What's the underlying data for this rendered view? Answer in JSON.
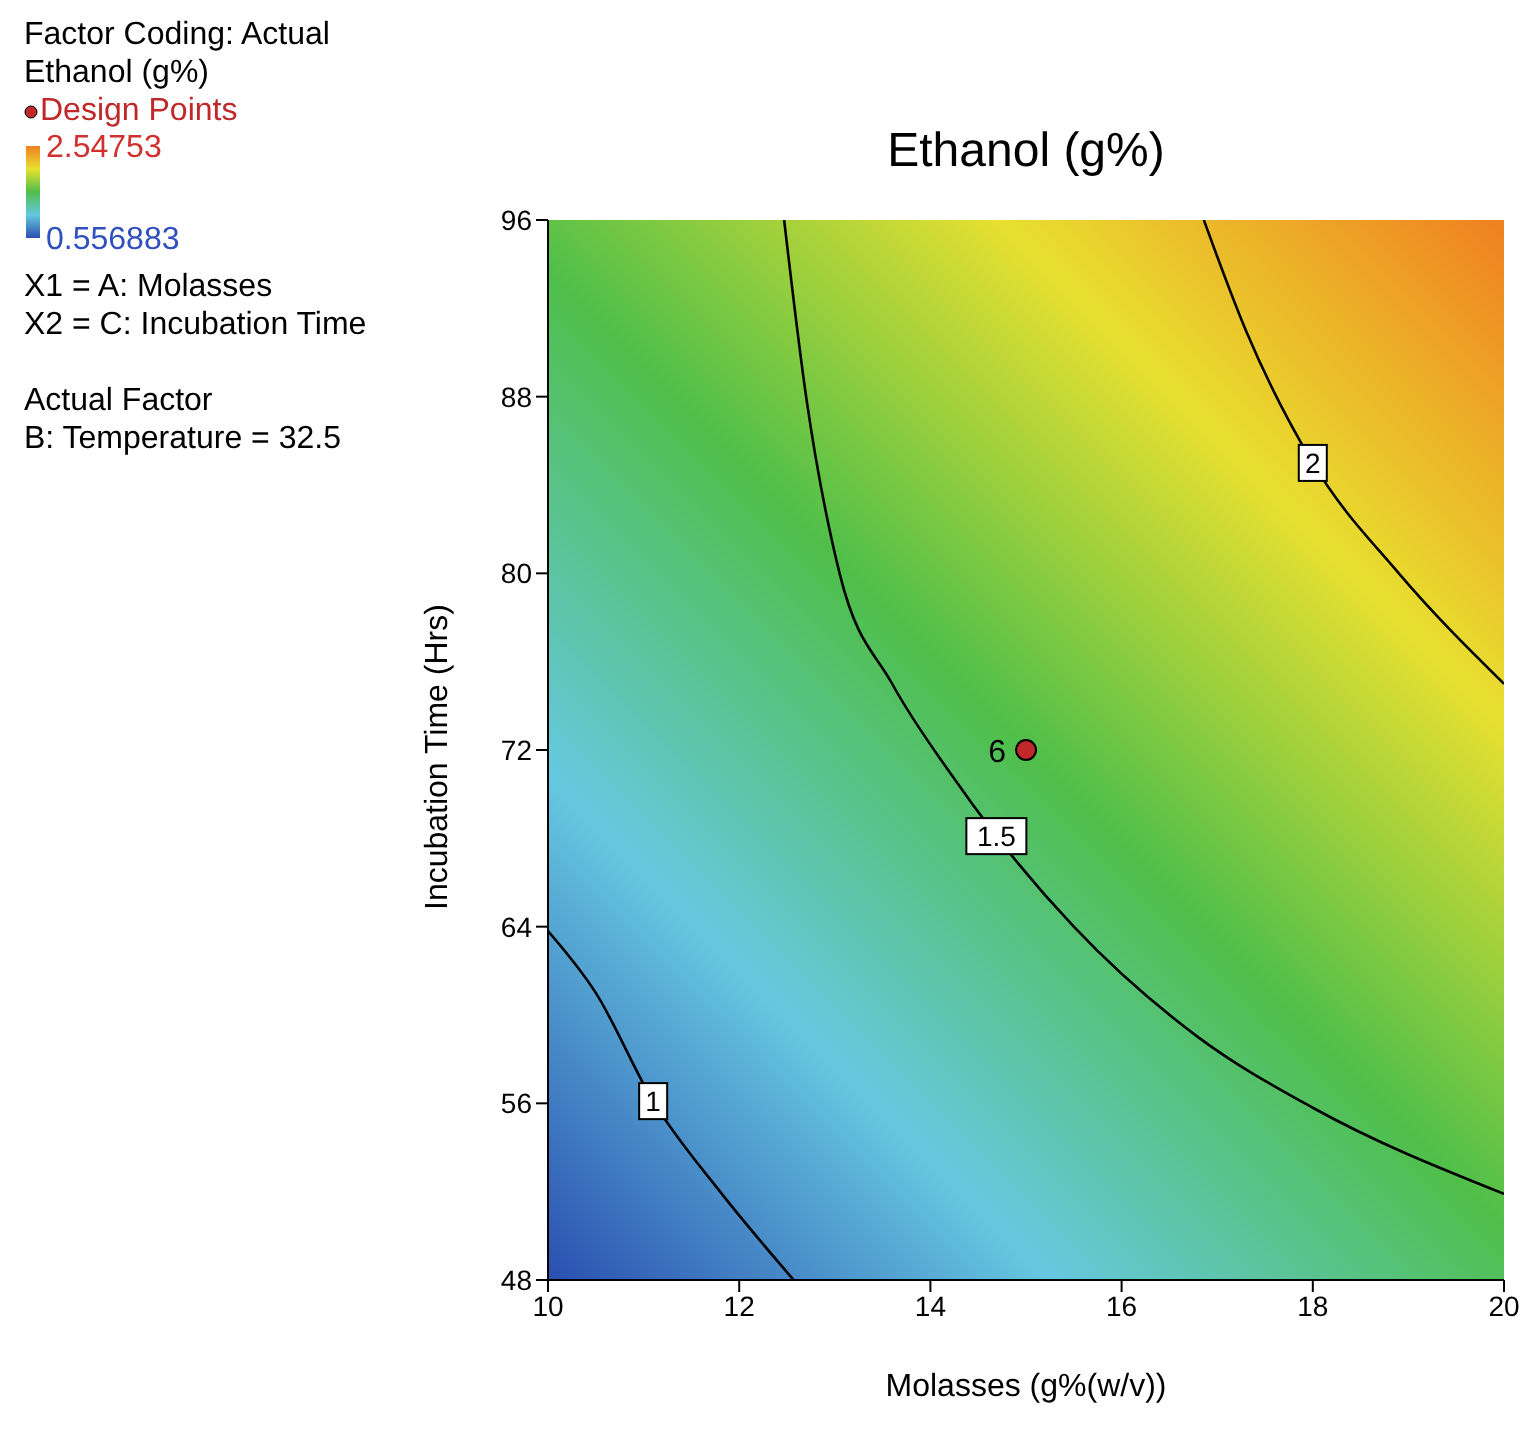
{
  "chart_data": {
    "type": "line",
    "title": "Ethanol (g%)",
    "xlabel": "Molasses (g%(w/v))",
    "ylabel": "Incubation Time (Hrs)",
    "xlim": [
      10,
      20
    ],
    "xticks": [
      10,
      12,
      14,
      16,
      18,
      20
    ],
    "ylim": [
      48,
      96
    ],
    "yticks": [
      48,
      56,
      64,
      72,
      80,
      88,
      96
    ],
    "clim": [
      0.556883,
      2.54753
    ],
    "cticks": [
      2.54753,
      0.556883
    ],
    "legend": "left",
    "grid": false,
    "marker": "none",
    "line_style": "solid",
    "annotations": [
      "Factor Coding: Actual",
      "Ethanol (g%)",
      "X1 = A: Molasses",
      "X2 = C: Incubation Time",
      "Actual Factor",
      "B: Temperature = 32.5",
      {
        "text": "6",
        "x": 15,
        "y": 72
      }
    ],
    "series": [
      {
        "name": "1",
        "color": "#000000",
        "x": [
          10,
          10.5,
          11.1,
          11.8,
          12.57
        ],
        "values": [
          63.8,
          61,
          56.1,
          52,
          48
        ]
      },
      {
        "name": "1.5",
        "color": "#000000",
        "x": [
          12.47,
          12.7,
          13.05,
          13.6,
          14.2,
          14.69,
          15.5,
          16.8,
          18,
          20
        ],
        "values": [
          96,
          88,
          80,
          75,
          71,
          68.1,
          64,
          59,
          55.8,
          51.9
        ]
      },
      {
        "name": "2",
        "color": "#000000",
        "x": [
          16.86,
          17.3,
          18,
          18.9,
          20
        ],
        "values": [
          96,
          91,
          85,
          80,
          75
        ]
      },
      {
        "name": "Design Points",
        "type": "scatter",
        "color": "#c0282a",
        "marker": "circle",
        "x": [
          15
        ],
        "values": [
          72
        ]
      }
    ]
  }
}
